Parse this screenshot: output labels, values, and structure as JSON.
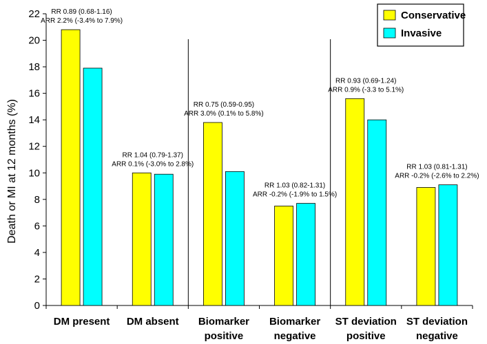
{
  "chart_data": {
    "type": "bar",
    "title": "",
    "xlabel": "",
    "ylabel": "Death or MI at 12 months (%)",
    "ylim": [
      0,
      22
    ],
    "yticks": [
      0,
      2,
      4,
      6,
      8,
      10,
      12,
      14,
      16,
      18,
      20,
      22
    ],
    "grid": false,
    "legend_position": "top-right",
    "categories": [
      [
        "DM present"
      ],
      [
        "DM absent"
      ],
      [
        "Biomarker",
        "positive"
      ],
      [
        "Biomarker",
        "negative"
      ],
      [
        "ST deviation",
        "positive"
      ],
      [
        "ST deviation",
        "negative"
      ]
    ],
    "series": [
      {
        "name": "Conservative",
        "color": "#ffff00",
        "values": [
          20.8,
          10.0,
          13.8,
          7.5,
          15.6,
          8.9
        ]
      },
      {
        "name": "Invasive",
        "color": "#00ffff",
        "values": [
          17.9,
          9.9,
          10.1,
          7.7,
          14.0,
          9.1
        ]
      }
    ],
    "annotations": [
      [
        "RR 0.89 (0.68-1.16)",
        "ARR 2.2% (-3.4% to 7.9%)"
      ],
      [
        "RR 1.04 (0.79-1.37)",
        "ARR 0.1% (-3.0% to 2.8%)"
      ],
      [
        "RR 0.75 (0.59-0.95)",
        "ARR 3.0% (0.1% to 5.8%)"
      ],
      [
        "RR 1.03 (0.82-1.31)",
        "ARR -0.2% (-1.9% to 1.5%)"
      ],
      [
        "RR 0.93 (0.69-1.24)",
        "ARR 0.9% (-3.3 to 5.1%)"
      ],
      [
        "RR 1.03 (0.81-1.31)",
        "ARR -0.2% (-2.6% to 2.2%)"
      ]
    ],
    "group_dividers_after": [
      1,
      3
    ]
  }
}
